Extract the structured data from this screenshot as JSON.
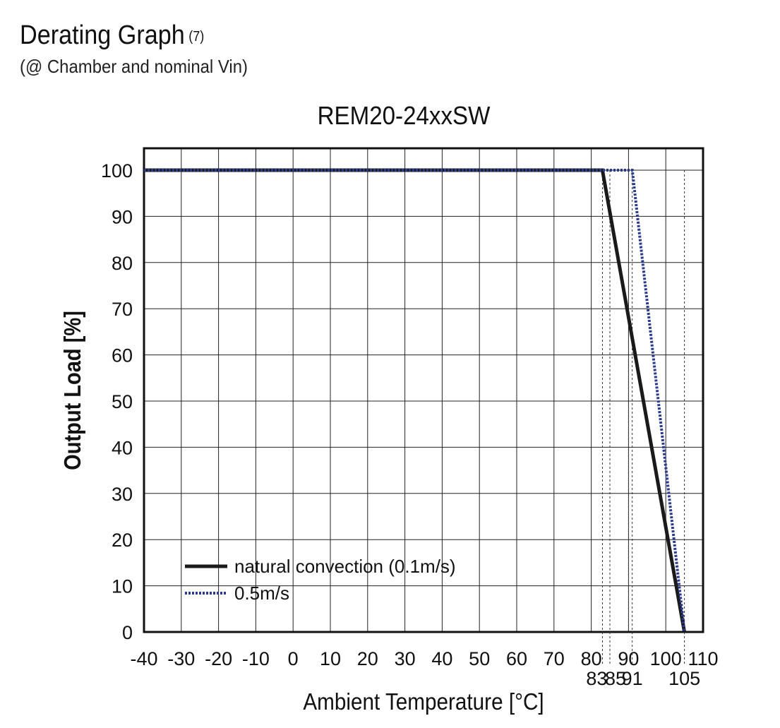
{
  "header": {
    "title": "Derating Graph",
    "title_note": "(7)",
    "subtitle": "(@ Chamber and nominal Vin)"
  },
  "chart_data": {
    "type": "line",
    "title": "REM20-24xxSW",
    "xlabel": "Ambient Temperature [°C]",
    "ylabel": "Output Load [%]",
    "xlim": [
      -40,
      110
    ],
    "ylim": [
      0,
      100
    ],
    "x_ticks": [
      -40,
      -30,
      -20,
      -10,
      0,
      10,
      20,
      30,
      40,
      50,
      60,
      70,
      80,
      90,
      100,
      110
    ],
    "y_ticks": [
      0,
      10,
      20,
      30,
      40,
      50,
      60,
      70,
      80,
      90,
      100
    ],
    "grid": true,
    "legend_position": "bottom-left",
    "series": [
      {
        "name": "natural convection (0.1m/s)",
        "style": "solid",
        "color": "#1a1a1a",
        "points": [
          [
            -40,
            100
          ],
          [
            83,
            100
          ],
          [
            105,
            0
          ]
        ]
      },
      {
        "name": "0.5m/s",
        "style": "dotted",
        "color": "#2b3a8f",
        "points": [
          [
            -40,
            100
          ],
          [
            91,
            100
          ],
          [
            105,
            0
          ]
        ]
      }
    ],
    "annotations": {
      "x_markers": [
        83,
        85,
        91,
        105
      ],
      "x_marker_labels": [
        "83",
        "85",
        "91",
        "105"
      ]
    }
  }
}
